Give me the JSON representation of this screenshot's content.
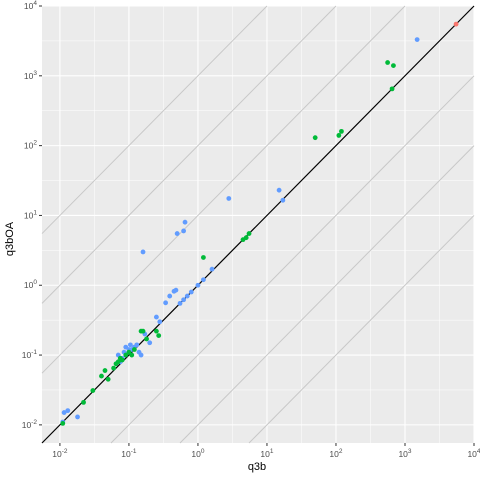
{
  "chart_data": {
    "type": "scatter",
    "xlabel": "q3b",
    "ylabel": "q3bOA",
    "x_scale": "log10",
    "y_scale": "log10",
    "xlim": [
      0.0055,
      10000
    ],
    "ylim": [
      0.0055,
      10000
    ],
    "x_ticks": [
      {
        "value": 0.01,
        "base": "10",
        "exp": "-2"
      },
      {
        "value": 0.1,
        "base": "10",
        "exp": "-1"
      },
      {
        "value": 1,
        "base": "10",
        "exp": "0"
      },
      {
        "value": 10,
        "base": "10",
        "exp": "1"
      },
      {
        "value": 100,
        "base": "10",
        "exp": "2"
      },
      {
        "value": 1000,
        "base": "10",
        "exp": "3"
      },
      {
        "value": 10000,
        "base": "10",
        "exp": "4"
      }
    ],
    "y_ticks": [
      {
        "value": 0.01,
        "base": "10",
        "exp": "-2"
      },
      {
        "value": 0.1,
        "base": "10",
        "exp": "-1"
      },
      {
        "value": 1,
        "base": "10",
        "exp": "0"
      },
      {
        "value": 10,
        "base": "10",
        "exp": "1"
      },
      {
        "value": 100,
        "base": "10",
        "exp": "2"
      },
      {
        "value": 1000,
        "base": "10",
        "exp": "3"
      },
      {
        "value": 10000,
        "base": "10",
        "exp": "4"
      }
    ],
    "grid": true,
    "reference_lines": {
      "identity_ratio": 1,
      "guide_ratios": [
        0.001,
        0.01,
        0.1,
        10,
        100,
        1000
      ],
      "identity_color": "#000000",
      "guide_color": "#c8c8c8"
    },
    "colors": {
      "panel": "#ebebeb",
      "grid": "#ffffff",
      "blue": "#619cff",
      "green": "#00ba38",
      "red": "#f8766d"
    },
    "series": [
      {
        "color_key": "blue",
        "points": [
          [
            0.011,
            0.011
          ],
          [
            0.0115,
            0.015
          ],
          [
            0.013,
            0.016
          ],
          [
            0.018,
            0.013
          ],
          [
            0.07,
            0.1
          ],
          [
            0.075,
            0.08
          ],
          [
            0.08,
            0.09
          ],
          [
            0.085,
            0.11
          ],
          [
            0.09,
            0.13
          ],
          [
            0.1,
            0.12
          ],
          [
            0.105,
            0.14
          ],
          [
            0.11,
            0.12
          ],
          [
            0.12,
            0.13
          ],
          [
            0.13,
            0.14
          ],
          [
            0.14,
            0.11
          ],
          [
            0.15,
            0.1
          ],
          [
            0.17,
            0.2
          ],
          [
            0.2,
            0.15
          ],
          [
            0.25,
            0.35
          ],
          [
            0.28,
            0.3
          ],
          [
            0.34,
            0.56
          ],
          [
            0.39,
            0.7
          ],
          [
            0.45,
            0.82
          ],
          [
            0.48,
            0.85
          ],
          [
            0.55,
            0.55
          ],
          [
            0.62,
            0.62
          ],
          [
            0.7,
            0.7
          ],
          [
            0.8,
            0.8
          ],
          [
            1.0,
            1.0
          ],
          [
            1.2,
            1.2
          ],
          [
            1.6,
            1.7
          ],
          [
            0.16,
            3.0
          ],
          [
            0.5,
            5.5
          ],
          [
            0.62,
            6.0
          ],
          [
            0.65,
            8.0
          ],
          [
            2.8,
            17.5
          ],
          [
            15.0,
            23.0
          ],
          [
            17.0,
            16.5
          ],
          [
            1500.0,
            3300.0
          ]
        ]
      },
      {
        "color_key": "green",
        "points": [
          [
            0.011,
            0.0105
          ],
          [
            0.022,
            0.021
          ],
          [
            0.03,
            0.031
          ],
          [
            0.04,
            0.05
          ],
          [
            0.045,
            0.06
          ],
          [
            0.05,
            0.045
          ],
          [
            0.06,
            0.065
          ],
          [
            0.065,
            0.075
          ],
          [
            0.07,
            0.08
          ],
          [
            0.075,
            0.09
          ],
          [
            0.08,
            0.085
          ],
          [
            0.09,
            0.1
          ],
          [
            0.1,
            0.11
          ],
          [
            0.11,
            0.1
          ],
          [
            0.12,
            0.12
          ],
          [
            0.15,
            0.22
          ],
          [
            0.16,
            0.22
          ],
          [
            0.18,
            0.17
          ],
          [
            0.25,
            0.22
          ],
          [
            0.27,
            0.19
          ],
          [
            1.2,
            2.5
          ],
          [
            4.5,
            4.5
          ],
          [
            5.0,
            4.8
          ],
          [
            5.5,
            5.5
          ],
          [
            50.0,
            130.0
          ],
          [
            110.0,
            140.0
          ],
          [
            120.0,
            160.0
          ],
          [
            560.0,
            1550.0
          ],
          [
            680.0,
            1400.0
          ],
          [
            650.0,
            650.0
          ]
        ]
      },
      {
        "color_key": "red",
        "points": [
          [
            5500.0,
            5500.0
          ]
        ]
      }
    ]
  }
}
